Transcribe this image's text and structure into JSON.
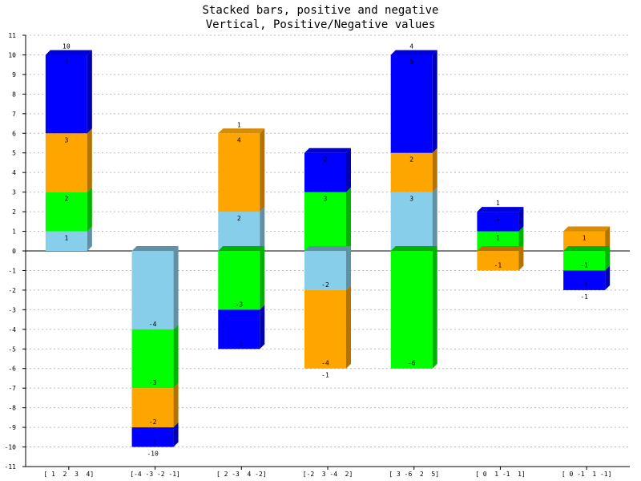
{
  "chart_data": {
    "type": "bar",
    "stacked": true,
    "title": "Stacked bars, positive and negative",
    "subtitle": "Vertical, Positive/Negative values",
    "categories": [
      "[ 1  2  3  4]",
      "[-4 -3 -2 -1]",
      "[ 2 -3  4 -2]",
      "[-2  3 -4  2]",
      "[ 3 -6  2  5]",
      "[ 0  1 -1  1]",
      "[ 0 -1  1 -1]"
    ],
    "series": [
      {
        "values": [
          1,
          -4,
          2,
          -2,
          3,
          0,
          0
        ],
        "color": "#87ceeb"
      },
      {
        "values": [
          2,
          -3,
          -3,
          3,
          -6,
          1,
          -1
        ],
        "color": "#00ff00"
      },
      {
        "values": [
          3,
          -2,
          4,
          -4,
          2,
          -1,
          1
        ],
        "color": "#ffa500"
      },
      {
        "values": [
          4,
          -1,
          -2,
          2,
          5,
          1,
          -1
        ],
        "color": "#0000ff"
      }
    ],
    "totals": [
      {
        "label": "10",
        "position": "top"
      },
      {
        "label": "-10",
        "position": "bottom"
      },
      {
        "label": "1",
        "position": "top"
      },
      {
        "label": "-1",
        "position": "bottom"
      },
      {
        "label": "4",
        "position": "top"
      },
      {
        "label": "1",
        "position": "top"
      },
      {
        "label": "-1",
        "position": "bottom"
      }
    ],
    "ylim": [
      -11,
      11
    ],
    "yticks": [
      -11,
      -10,
      -9,
      -8,
      -7,
      -6,
      -5,
      -4,
      -3,
      -2,
      -1,
      0,
      1,
      2,
      3,
      4,
      5,
      6,
      7,
      8,
      9,
      10,
      11
    ],
    "grid": true,
    "xlabel": "",
    "ylabel": "",
    "legend": "none"
  }
}
